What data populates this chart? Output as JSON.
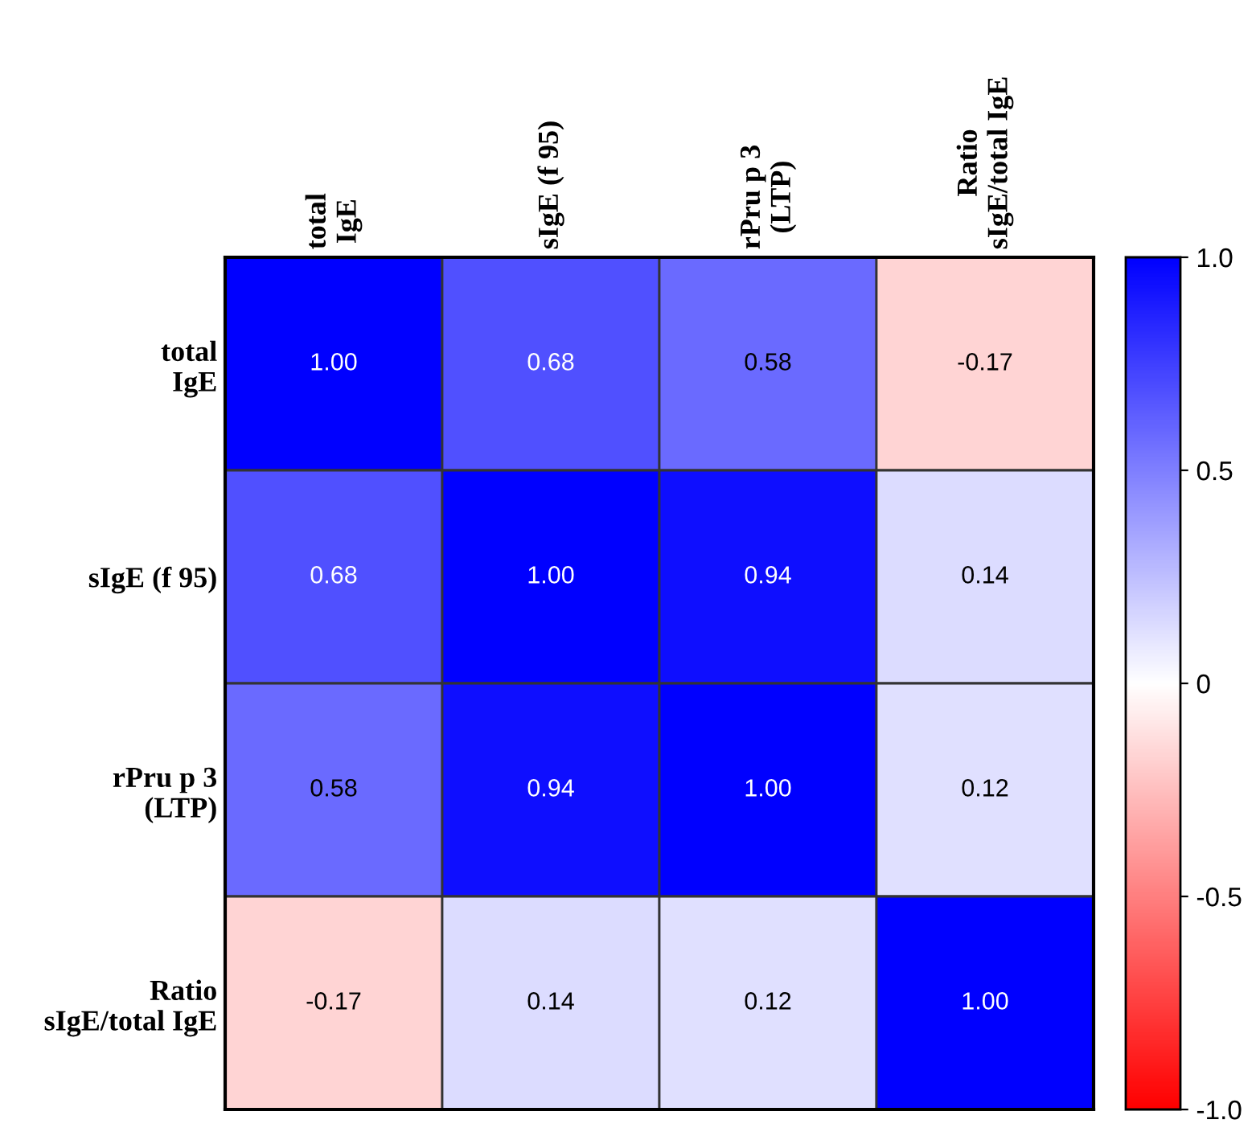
{
  "chart_data": {
    "type": "heatmap",
    "categories": [
      "total\nIgE",
      "sIgE (f 95)",
      "rPru p 3\n(LTP)",
      "Ratio\nsIgE/total IgE"
    ],
    "y_categories": [
      "total\nIgE",
      "sIgE (f 95)",
      "rPru p 3\n(LTP)",
      "Ratio\nsIgE/total IgE"
    ],
    "cells": [
      [
        1.0,
        0.68,
        0.58,
        -0.17
      ],
      [
        0.68,
        1.0,
        0.94,
        0.14
      ],
      [
        0.58,
        0.94,
        1.0,
        0.12
      ],
      [
        -0.17,
        0.14,
        0.12,
        1.0
      ]
    ],
    "cell_labels": [
      [
        "1.00",
        "0.68",
        "0.58",
        "-0.17"
      ],
      [
        "0.68",
        "1.00",
        "0.94",
        "0.14"
      ],
      [
        "0.58",
        "0.94",
        "1.00",
        "0.12"
      ],
      [
        "-0.17",
        "0.14",
        "0.12",
        "1.00"
      ]
    ],
    "colors": [
      "#ff0000",
      "#ffffff",
      "#0000ff"
    ],
    "clim": [
      -1.0,
      1.0
    ],
    "cticks": [
      {
        "value": 1.0,
        "label": "1.0"
      },
      {
        "value": 0.5,
        "label": "0.5"
      },
      {
        "value": 0,
        "label": "0"
      },
      {
        "value": -0.5,
        "label": "-0.5"
      },
      {
        "value": -1.0,
        "label": "-1.0"
      }
    ]
  }
}
